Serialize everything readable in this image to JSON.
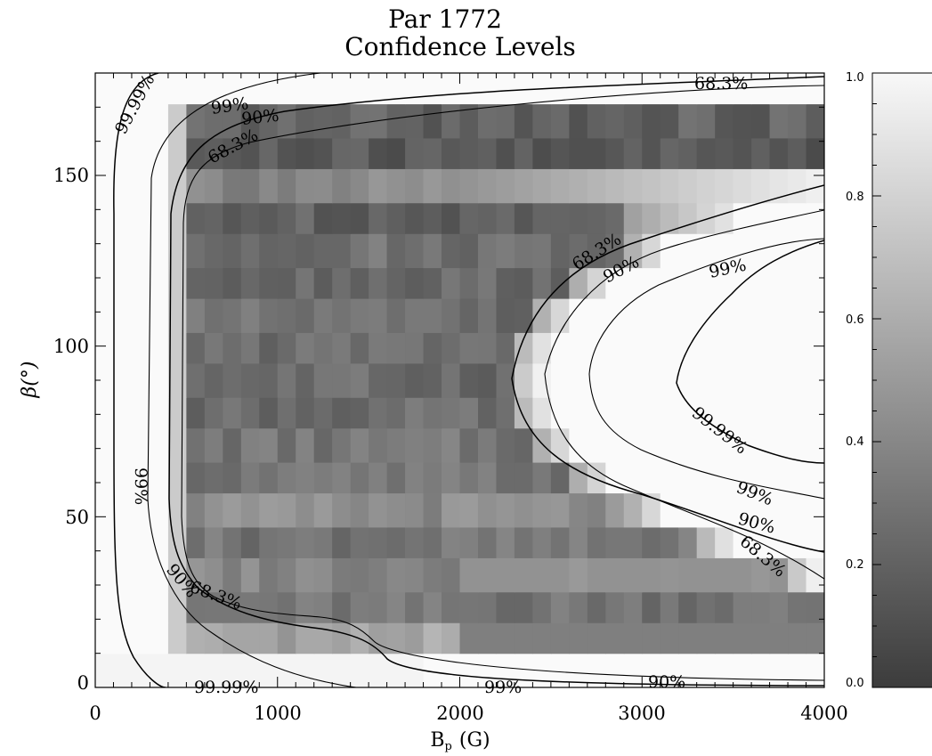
{
  "chart_data": {
    "type": "heatmap",
    "title": "Par 1772",
    "subtitle": "Confidence Levels",
    "xlabel": "B",
    "xlabel_sub": "p",
    "xlabel_unit": "(G)",
    "ylabel": "β(°)",
    "xlim": [
      0,
      4000
    ],
    "ylim": [
      0,
      180
    ],
    "x_ticks": [
      "0",
      "1000",
      "2000",
      "3000",
      "4000"
    ],
    "y_ticks": [
      "0",
      "50",
      "100",
      "150"
    ],
    "colorbar": {
      "min": 0.0,
      "max": 1.0,
      "ticks": [
        "0.0",
        "0.2",
        "0.4",
        "0.6",
        "0.8",
        "1.0"
      ],
      "colormap": "grayscale (0 = dark gray, 1 = white)"
    },
    "contour_levels": [
      "68.3%",
      "90%",
      "99%",
      "99.99%"
    ],
    "band_profile": {
      "beta_bands": [
        [
          0,
          10,
          0.95
        ],
        [
          10,
          19,
          0.55
        ],
        [
          19,
          28,
          0.3
        ],
        [
          28,
          38,
          0.4
        ],
        [
          38,
          47,
          0.3
        ],
        [
          47,
          57,
          0.42
        ],
        [
          57,
          66,
          0.3
        ],
        [
          66,
          76,
          0.3
        ],
        [
          76,
          85,
          0.25
        ],
        [
          85,
          95,
          0.25
        ],
        [
          95,
          104,
          0.27
        ],
        [
          104,
          114,
          0.27
        ],
        [
          114,
          123,
          0.25
        ],
        [
          123,
          133,
          0.28
        ],
        [
          133,
          142,
          0.2
        ],
        [
          142,
          152,
          0.4
        ],
        [
          152,
          161,
          0.15
        ],
        [
          161,
          171,
          0.2
        ],
        [
          171,
          180,
          1.0
        ]
      ]
    }
  }
}
